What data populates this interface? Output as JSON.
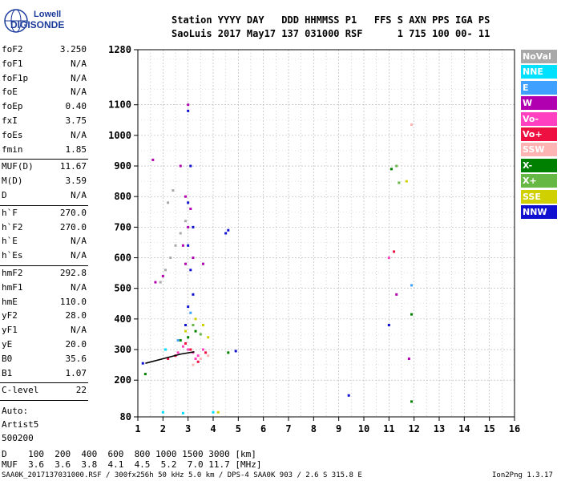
{
  "logo": {
    "line1": "Lowell",
    "line2": "DIGISONDE"
  },
  "header": {
    "row1": "Station YYYY DAY   DDD HHMMSS P1   FFS S AXN PPS IGA PS",
    "row2": "SaoLuis 2017 May17 137 031000 RSF      1 715 100 00- 11"
  },
  "params": [
    {
      "name": "foF2",
      "value": "3.250"
    },
    {
      "name": "foF1",
      "value": "N/A"
    },
    {
      "name": "foF1p",
      "value": "N/A"
    },
    {
      "name": "foE",
      "value": "N/A"
    },
    {
      "name": "foEp",
      "value": "0.40"
    },
    {
      "name": "fxI",
      "value": "3.75"
    },
    {
      "name": "foEs",
      "value": "N/A"
    },
    {
      "name": "fmin",
      "value": "1.85"
    },
    {
      "name": "MUF(D)",
      "value": "11.67"
    },
    {
      "name": "M(D)",
      "value": "3.59"
    },
    {
      "name": "D",
      "value": "N/A"
    },
    {
      "name": "h`F",
      "value": "270.0"
    },
    {
      "name": "h`F2",
      "value": "270.0"
    },
    {
      "name": "h`E",
      "value": "N/A"
    },
    {
      "name": "h`Es",
      "value": "N/A"
    },
    {
      "name": "hmF2",
      "value": "292.8"
    },
    {
      "name": "hmF1",
      "value": "N/A"
    },
    {
      "name": "hmE",
      "value": "110.0"
    },
    {
      "name": "yF2",
      "value": "28.0"
    },
    {
      "name": "yF1",
      "value": "N/A"
    },
    {
      "name": "yE",
      "value": "20.0"
    },
    {
      "name": "B0",
      "value": "35.6"
    },
    {
      "name": "B1",
      "value": "1.07"
    },
    {
      "name": "C-level",
      "value": "22"
    }
  ],
  "autoscaling": {
    "line1": "Auto:",
    "line2": "Artist5",
    "line3": "500200"
  },
  "legend": [
    {
      "label": "NoVal",
      "bg": "#a8a8a8",
      "fg": "#ffffff"
    },
    {
      "label": "NNE",
      "bg": "#00e0ff",
      "fg": "#ffffff"
    },
    {
      "label": "E",
      "bg": "#3fa0ff",
      "fg": "#ffffff"
    },
    {
      "label": "W",
      "bg": "#b000b0",
      "fg": "#ffffff"
    },
    {
      "label": "Vo-",
      "bg": "#ff40c0",
      "fg": "#ffffff"
    },
    {
      "label": "Vo+",
      "bg": "#ee1040",
      "fg": "#ffffff"
    },
    {
      "label": "SSW",
      "bg": "#ffb4b4",
      "fg": "#ffffff"
    },
    {
      "label": "X-",
      "bg": "#008000",
      "fg": "#ffffff"
    },
    {
      "label": "X+",
      "bg": "#66b844",
      "fg": "#ffffff"
    },
    {
      "label": "SSE",
      "bg": "#d0d000",
      "fg": "#ffffff"
    },
    {
      "label": "NNW",
      "bg": "#1010d0",
      "fg": "#ffffff"
    }
  ],
  "bottom": {
    "d_row": "D    100  200  400  600  800 1000 1500 3000 [km]",
    "muf_row": "MUF  3.6  3.6  3.8  4.1  4.5  5.2  7.0 11.7 [MHz]"
  },
  "footer": {
    "left": "SAA0K_2017137031000.RSF / 300fx256h 50 kHz 5.0 km / DPS-4 SAA0K 903 / 2.6 S 315.8 E",
    "right": "Ion2Png 1.3.17"
  },
  "chart_data": {
    "type": "scatter",
    "title": "",
    "xlabel": "",
    "ylabel": "",
    "xlim": [
      1,
      16
    ],
    "ylim": [
      80,
      1280
    ],
    "xticks": [
      1,
      2,
      3,
      4,
      5,
      6,
      7,
      8,
      9,
      10,
      11,
      12,
      13,
      14,
      15,
      16
    ],
    "yticks": [
      80,
      200,
      300,
      400,
      500,
      600,
      700,
      800,
      900,
      1000,
      1100,
      1280
    ],
    "grid": true,
    "series": [
      {
        "name": "NoVal",
        "color": "#a8a8a8",
        "points": [
          [
            1.9,
            520
          ],
          [
            2.1,
            560
          ],
          [
            2.3,
            600
          ],
          [
            2.5,
            640
          ],
          [
            2.7,
            680
          ],
          [
            2.9,
            720
          ],
          [
            2.2,
            780
          ],
          [
            2.4,
            820
          ]
        ]
      },
      {
        "name": "NNE",
        "color": "#00e0ff",
        "points": [
          [
            2.0,
            95
          ],
          [
            2.8,
            92
          ],
          [
            4.0,
            95
          ],
          [
            2.1,
            300
          ]
        ]
      },
      {
        "name": "E",
        "color": "#3fa0ff",
        "points": [
          [
            11.9,
            510
          ],
          [
            3.1,
            420
          ],
          [
            2.6,
            330
          ]
        ]
      },
      {
        "name": "W",
        "color": "#b000b0",
        "points": [
          [
            1.6,
            920
          ],
          [
            3.0,
            1100
          ],
          [
            2.7,
            900
          ],
          [
            2.9,
            800
          ],
          [
            3.1,
            760
          ],
          [
            3.0,
            700
          ],
          [
            2.8,
            640
          ],
          [
            2.9,
            580
          ],
          [
            3.2,
            600
          ],
          [
            3.6,
            580
          ],
          [
            11.3,
            480
          ],
          [
            11.8,
            270
          ],
          [
            1.7,
            520
          ],
          [
            2.0,
            540
          ]
        ]
      },
      {
        "name": "Vo-",
        "color": "#ff40c0",
        "points": [
          [
            3.0,
            300
          ],
          [
            3.2,
            290
          ],
          [
            3.4,
            280
          ],
          [
            3.6,
            300
          ],
          [
            2.8,
            310
          ],
          [
            2.6,
            290
          ],
          [
            11.0,
            600
          ],
          [
            3.3,
            270
          ]
        ]
      },
      {
        "name": "Vo+",
        "color": "#ee1040",
        "points": [
          [
            2.9,
            320
          ],
          [
            3.1,
            300
          ],
          [
            2.5,
            280
          ],
          [
            2.2,
            270
          ],
          [
            3.4,
            260
          ],
          [
            3.7,
            290
          ],
          [
            11.2,
            620
          ]
        ]
      },
      {
        "name": "SSW",
        "color": "#ffb4b4",
        "points": [
          [
            3.5,
            270
          ],
          [
            3.8,
            280
          ],
          [
            11.9,
            1035
          ],
          [
            3.2,
            250
          ]
        ]
      },
      {
        "name": "X-",
        "color": "#008000",
        "points": [
          [
            3.0,
            340
          ],
          [
            3.3,
            360
          ],
          [
            2.7,
            330
          ],
          [
            11.1,
            890
          ],
          [
            11.9,
            415
          ],
          [
            11.9,
            130
          ],
          [
            4.6,
            290
          ],
          [
            1.3,
            220
          ]
        ]
      },
      {
        "name": "X+",
        "color": "#66b844",
        "points": [
          [
            3.2,
            380
          ],
          [
            3.5,
            350
          ],
          [
            11.3,
            900
          ],
          [
            11.4,
            845
          ]
        ]
      },
      {
        "name": "SSE",
        "color": "#d0d000",
        "points": [
          [
            3.3,
            400
          ],
          [
            3.6,
            380
          ],
          [
            3.8,
            340
          ],
          [
            11.7,
            850
          ],
          [
            4.2,
            95
          ],
          [
            2.9,
            360
          ]
        ]
      },
      {
        "name": "NNW",
        "color": "#1010d0",
        "points": [
          [
            3.0,
            1080
          ],
          [
            3.1,
            900
          ],
          [
            3.0,
            780
          ],
          [
            3.2,
            700
          ],
          [
            3.0,
            640
          ],
          [
            3.1,
            560
          ],
          [
            3.2,
            480
          ],
          [
            3.0,
            440
          ],
          [
            2.9,
            380
          ],
          [
            4.5,
            680
          ],
          [
            4.6,
            690
          ],
          [
            11.0,
            380
          ],
          [
            9.4,
            150
          ],
          [
            4.9,
            295
          ],
          [
            1.2,
            255
          ]
        ]
      }
    ],
    "profile_curve": [
      [
        1.3,
        255
      ],
      [
        2.0,
        270
      ],
      [
        2.7,
        285
      ],
      [
        3.25,
        292.8
      ]
    ]
  }
}
